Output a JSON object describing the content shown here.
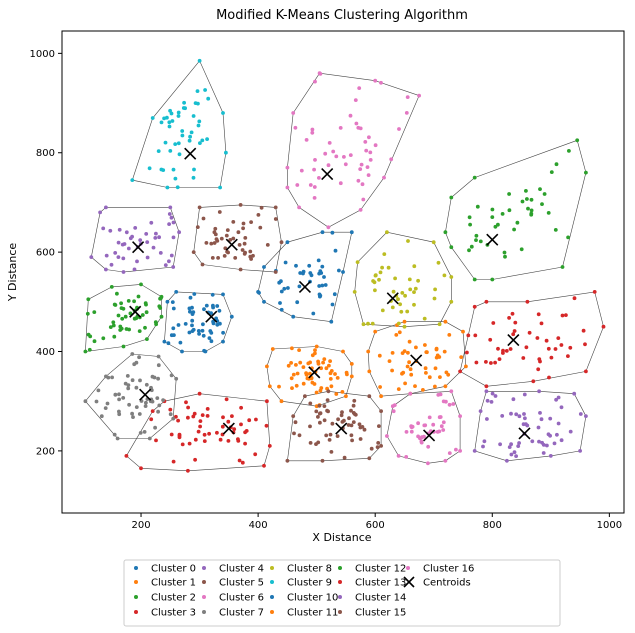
{
  "chart_data": {
    "type": "scatter",
    "title": "Modified K-Means Clustering Algorithm",
    "xlabel": "X Distance",
    "ylabel": "Y Distance",
    "xlim": [
      65,
      1025
    ],
    "ylim": [
      75,
      1045
    ],
    "xticks": [
      200,
      400,
      600,
      800,
      1000
    ],
    "yticks": [
      200,
      400,
      600,
      800,
      1000
    ],
    "grid": false,
    "legend": "bottom-center",
    "clusters": [
      {
        "name": "Cluster 0",
        "color": "#1f77b4",
        "centroid": [
          480,
          530
        ],
        "hull": [
          [
            410,
            570
          ],
          [
            450,
            620
          ],
          [
            510,
            640
          ],
          [
            560,
            640
          ],
          [
            545,
            560
          ],
          [
            525,
            460
          ],
          [
            460,
            470
          ],
          [
            410,
            500
          ],
          [
            400,
            520
          ]
        ]
      },
      {
        "name": "Cluster 1",
        "color": "#ff7f0e",
        "centroid": [
          670,
          382
        ],
        "hull": [
          [
            590,
            360
          ],
          [
            610,
            310
          ],
          [
            660,
            315
          ],
          [
            720,
            330
          ],
          [
            755,
            370
          ],
          [
            750,
            440
          ],
          [
            720,
            460
          ],
          [
            650,
            460
          ],
          [
            600,
            440
          ],
          [
            588,
            400
          ]
        ]
      },
      {
        "name": "Cluster 2",
        "color": "#2ca02c",
        "centroid": [
          190,
          480
        ],
        "hull": [
          [
            105,
            400
          ],
          [
            110,
            505
          ],
          [
            150,
            530
          ],
          [
            200,
            535
          ],
          [
            235,
            510
          ],
          [
            235,
            470
          ],
          [
            210,
            425
          ],
          [
            170,
            410
          ]
        ]
      },
      {
        "name": "Cluster 3",
        "color": "#d62728",
        "centroid": [
          350,
          245
        ],
        "hull": [
          [
            175,
            190
          ],
          [
            200,
            165
          ],
          [
            280,
            160
          ],
          [
            410,
            170
          ],
          [
            420,
            210
          ],
          [
            415,
            300
          ],
          [
            300,
            315
          ],
          [
            240,
            300
          ],
          [
            220,
            280
          ]
        ]
      },
      {
        "name": "Cluster 4",
        "color": "#9467bd",
        "centroid": [
          195,
          610
        ],
        "hull": [
          [
            115,
            590
          ],
          [
            130,
            680
          ],
          [
            140,
            690
          ],
          [
            250,
            690
          ],
          [
            265,
            640
          ],
          [
            255,
            570
          ],
          [
            170,
            560
          ],
          [
            140,
            565
          ]
        ]
      },
      {
        "name": "Cluster 5",
        "color": "#8c564b",
        "centroid": [
          355,
          615
        ],
        "hull": [
          [
            290,
            600
          ],
          [
            300,
            690
          ],
          [
            370,
            695
          ],
          [
            430,
            690
          ],
          [
            440,
            620
          ],
          [
            430,
            560
          ],
          [
            370,
            565
          ],
          [
            305,
            575
          ]
        ]
      },
      {
        "name": "Cluster 6",
        "color": "#e377c2",
        "centroid": [
          518,
          757
        ],
        "hull": [
          [
            450,
            770
          ],
          [
            460,
            880
          ],
          [
            505,
            960
          ],
          [
            600,
            945
          ],
          [
            675,
            915
          ],
          [
            615,
            750
          ],
          [
            575,
            685
          ],
          [
            520,
            650
          ],
          [
            470,
            690
          ],
          [
            450,
            730
          ]
        ]
      },
      {
        "name": "Cluster 7",
        "color": "#7f7f7f",
        "centroid": [
          207,
          313
        ],
        "hull": [
          [
            105,
            300
          ],
          [
            140,
            350
          ],
          [
            185,
            395
          ],
          [
            230,
            390
          ],
          [
            260,
            345
          ],
          [
            255,
            265
          ],
          [
            215,
            225
          ],
          [
            160,
            225
          ]
        ]
      },
      {
        "name": "Cluster 8",
        "color": "#bcbd22",
        "centroid": [
          630,
          507
        ],
        "hull": [
          [
            570,
            580
          ],
          [
            620,
            640
          ],
          [
            700,
            620
          ],
          [
            730,
            550
          ],
          [
            730,
            500
          ],
          [
            710,
            455
          ],
          [
            650,
            450
          ],
          [
            580,
            455
          ],
          [
            565,
            520
          ]
        ]
      },
      {
        "name": "Cluster 9",
        "color": "#17becf",
        "centroid": [
          284,
          798
        ],
        "hull": [
          [
            185,
            745
          ],
          [
            220,
            870
          ],
          [
            300,
            985
          ],
          [
            340,
            880
          ],
          [
            345,
            800
          ],
          [
            335,
            730
          ],
          [
            245,
            730
          ]
        ]
      },
      {
        "name": "Cluster 10",
        "color": "#1f77b4",
        "centroid": [
          320,
          470
        ],
        "hull": [
          [
            240,
            420
          ],
          [
            245,
            500
          ],
          [
            260,
            520
          ],
          [
            340,
            515
          ],
          [
            355,
            470
          ],
          [
            340,
            420
          ],
          [
            310,
            400
          ],
          [
            270,
            400
          ]
        ]
      },
      {
        "name": "Cluster 11",
        "color": "#ff7f0e",
        "centroid": [
          496,
          358
        ],
        "hull": [
          [
            420,
            330
          ],
          [
            415,
            370
          ],
          [
            425,
            405
          ],
          [
            500,
            410
          ],
          [
            545,
            400
          ],
          [
            560,
            375
          ],
          [
            560,
            350
          ],
          [
            550,
            310
          ],
          [
            500,
            290
          ],
          [
            440,
            300
          ]
        ]
      },
      {
        "name": "Cluster 12",
        "color": "#2ca02c",
        "centroid": [
          800,
          625
        ],
        "hull": [
          [
            730,
            710
          ],
          [
            770,
            750
          ],
          [
            945,
            825
          ],
          [
            960,
            760
          ],
          [
            920,
            570
          ],
          [
            800,
            545
          ],
          [
            770,
            545
          ],
          [
            730,
            610
          ],
          [
            720,
            640
          ]
        ]
      },
      {
        "name": "Cluster 13",
        "color": "#d62728",
        "centroid": [
          836,
          423
        ],
        "hull": [
          [
            745,
            360
          ],
          [
            770,
            490
          ],
          [
            790,
            500
          ],
          [
            860,
            500
          ],
          [
            975,
            520
          ],
          [
            990,
            450
          ],
          [
            960,
            360
          ],
          [
            870,
            340
          ],
          [
            790,
            330
          ]
        ]
      },
      {
        "name": "Cluster 14",
        "color": "#9467bd",
        "centroid": [
          855,
          235
        ],
        "hull": [
          [
            770,
            200
          ],
          [
            780,
            280
          ],
          [
            790,
            320
          ],
          [
            880,
            320
          ],
          [
            940,
            315
          ],
          [
            960,
            270
          ],
          [
            950,
            200
          ],
          [
            900,
            190
          ],
          [
            825,
            180
          ]
        ]
      },
      {
        "name": "Cluster 15",
        "color": "#8c564b",
        "centroid": [
          542,
          245
        ],
        "hull": [
          [
            450,
            180
          ],
          [
            460,
            270
          ],
          [
            480,
            310
          ],
          [
            520,
            320
          ],
          [
            590,
            310
          ],
          [
            610,
            280
          ],
          [
            610,
            210
          ],
          [
            590,
            185
          ],
          [
            510,
            180
          ]
        ]
      },
      {
        "name": "Cluster 16",
        "color": "#e377c2",
        "centroid": [
          692,
          231
        ],
        "hull": [
          [
            620,
            230
          ],
          [
            630,
            290
          ],
          [
            660,
            315
          ],
          [
            730,
            320
          ],
          [
            745,
            270
          ],
          [
            745,
            200
          ],
          [
            720,
            180
          ],
          [
            690,
            175
          ],
          [
            640,
            190
          ]
        ]
      }
    ],
    "centroid_legend": "Centroids"
  }
}
